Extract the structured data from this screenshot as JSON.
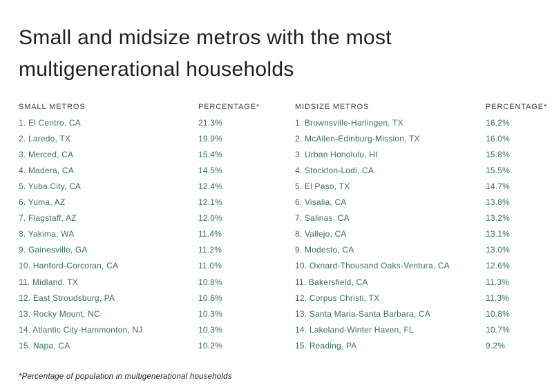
{
  "title": "Small and midsize metros with the most multigenerational households",
  "footnote": "*Percentage of population in multigenerational households",
  "colors": {
    "background": "#ffffff",
    "title_text": "#1e1e1e",
    "header_text": "#3a3a3a",
    "row_text": "#366f5f"
  },
  "chart_data": [
    {
      "type": "table",
      "name": "small_metros",
      "columns": [
        "SMALL METROS",
        "PERCENTAGE*"
      ],
      "rows": [
        [
          "1. El Centro, CA",
          "21.3%"
        ],
        [
          "2. Laredo, TX",
          "19.9%"
        ],
        [
          "3. Merced, CA",
          "15.4%"
        ],
        [
          "4. Madera, CA",
          "14.5%"
        ],
        [
          "5. Yuba City, CA",
          "12.4%"
        ],
        [
          "6. Yuma, AZ",
          "12.1%"
        ],
        [
          "7. Flagstaff, AZ",
          "12.0%"
        ],
        [
          "8. Yakima, WA",
          "11.4%"
        ],
        [
          "9. Gainesville, GA",
          "11.2%"
        ],
        [
          "10. Hanford-Corcoran, CA",
          "11.0%"
        ],
        [
          "11. Midland, TX",
          "10.8%"
        ],
        [
          "12. East Stroudsburg, PA",
          "10.6%"
        ],
        [
          "13. Rocky Mount, NC",
          "10.3%"
        ],
        [
          "14. Atlantic City-Hammonton, NJ",
          "10.3%"
        ],
        [
          "15. Napa, CA",
          "10.2%"
        ]
      ]
    },
    {
      "type": "table",
      "name": "midsize_metros",
      "columns": [
        "MIDSIZE METROS",
        "PERCENTAGE*"
      ],
      "rows": [
        [
          "1. Brownsville-Harlingen, TX",
          "16.2%"
        ],
        [
          "2. McAllen-Edinburg-Mission, TX",
          "16.0%"
        ],
        [
          "3. Urban Honolulu, HI",
          "15.8%"
        ],
        [
          "4. Stockton-Lodi, CA",
          "15.5%"
        ],
        [
          "5. El Paso, TX",
          "14.7%"
        ],
        [
          "6. Visalia, CA",
          "13.8%"
        ],
        [
          "7. Salinas, CA",
          "13.2%"
        ],
        [
          "8. Vallejo, CA",
          "13.1%"
        ],
        [
          "9. Modesto, CA",
          "13.0%"
        ],
        [
          "10. Oxnard-Thousand Oaks-Ventura, CA",
          "12.6%"
        ],
        [
          "11. Bakersfield, CA",
          "11.3%"
        ],
        [
          "12. Corpus Christi, TX",
          "11.3%"
        ],
        [
          "13. Santa Maria-Santa Barbara, CA",
          "10.8%"
        ],
        [
          "14. Lakeland-Winter Haven, FL",
          "10.7%"
        ],
        [
          "15. Reading, PA",
          "9.2%"
        ]
      ]
    }
  ]
}
